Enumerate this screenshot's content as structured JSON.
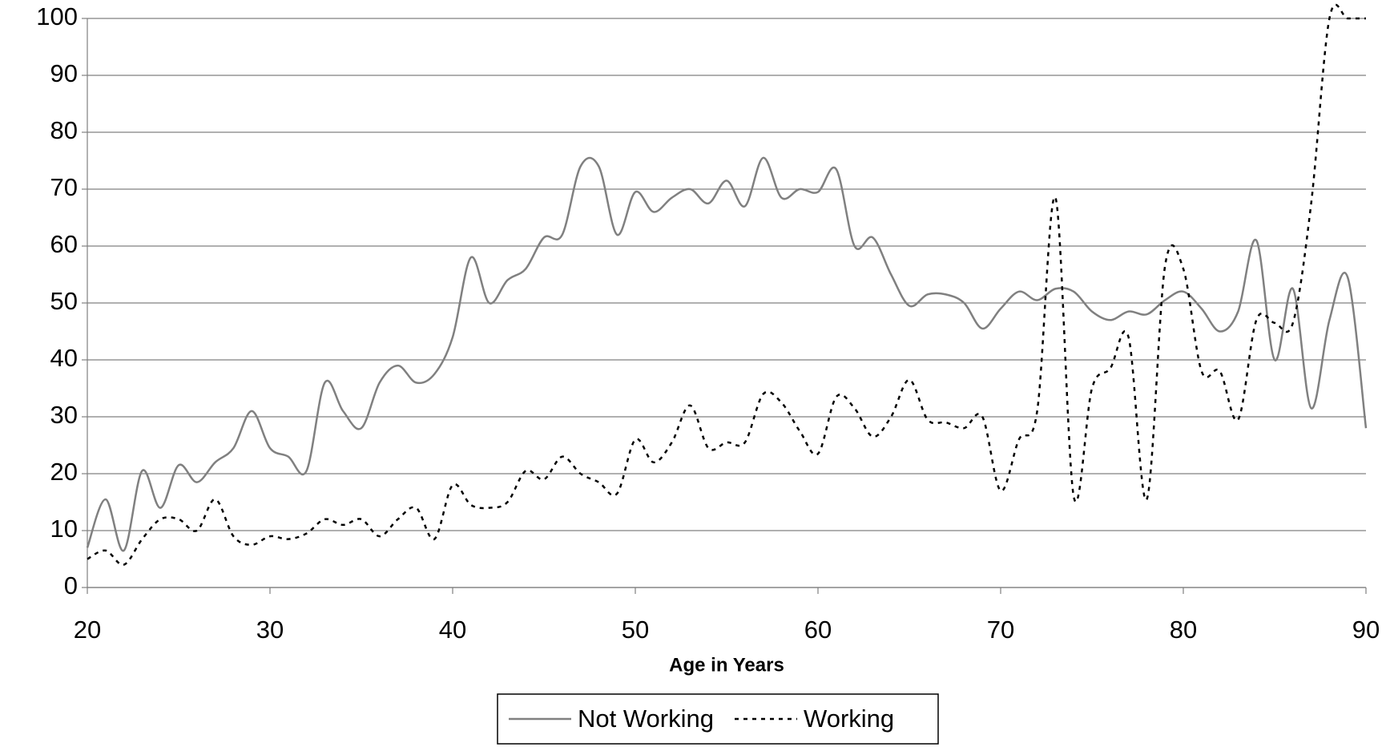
{
  "chart_data": {
    "type": "line",
    "x_label": "Age in Years",
    "x": [
      20,
      21,
      22,
      23,
      24,
      25,
      26,
      27,
      28,
      29,
      30,
      31,
      32,
      33,
      34,
      35,
      36,
      37,
      38,
      39,
      40,
      41,
      42,
      43,
      44,
      45,
      46,
      47,
      48,
      49,
      50,
      51,
      52,
      53,
      54,
      55,
      56,
      57,
      58,
      59,
      60,
      61,
      62,
      63,
      64,
      65,
      66,
      67,
      68,
      69,
      70,
      71,
      72,
      73,
      74,
      75,
      76,
      77,
      78,
      79,
      80,
      81,
      82,
      83,
      84,
      85,
      86,
      87,
      88,
      89,
      90
    ],
    "series": [
      {
        "name": "Not Working",
        "color": "#808080",
        "dash": "solid",
        "values": [
          7,
          15.5,
          6.5,
          20.5,
          14,
          21.5,
          18.5,
          22,
          24.5,
          31,
          24.5,
          23,
          20.5,
          36,
          31,
          28,
          36,
          39,
          36,
          37.5,
          44,
          58,
          50,
          54,
          56,
          61.5,
          62,
          74,
          74,
          62,
          69.5,
          66,
          68.5,
          70,
          67.5,
          71.5,
          67,
          75.5,
          68.5,
          70,
          69.5,
          73.5,
          60,
          61.5,
          55,
          49.5,
          51.5,
          51.5,
          50,
          45.5,
          49,
          52,
          50.5,
          52.5,
          52,
          48.5,
          47,
          48.5,
          48,
          50.5,
          52,
          49,
          45,
          48.5,
          61,
          40,
          52.5,
          31.5,
          47,
          54.5,
          28
        ]
      },
      {
        "name": "Working",
        "color": "#000000",
        "dash": "dotted",
        "values": [
          5,
          6.5,
          4,
          8.5,
          12,
          12,
          10,
          15.5,
          9,
          7.5,
          9,
          8.5,
          9.5,
          12,
          11,
          12,
          9,
          12,
          14,
          8.5,
          18,
          14.5,
          14,
          15,
          20.5,
          19,
          23,
          20,
          18.5,
          16.5,
          26,
          22,
          25.5,
          32,
          24.5,
          25.5,
          25.5,
          34,
          32.5,
          27.5,
          23.5,
          33.5,
          31.5,
          26.5,
          30,
          36.5,
          29.5,
          29,
          28,
          30,
          17,
          26,
          31,
          68.5,
          16,
          35,
          38.5,
          44,
          15.5,
          56.5,
          56,
          38,
          38,
          29.5,
          47,
          46.5,
          46.5,
          67.5,
          100,
          100,
          100
        ]
      }
    ],
    "xlim": [
      20,
      90
    ],
    "xticks": [
      20,
      30,
      40,
      50,
      60,
      70,
      80,
      90
    ],
    "ylim": [
      0,
      100
    ],
    "yticks": [
      0,
      10,
      20,
      30,
      40,
      50,
      60,
      70,
      80,
      90,
      100
    ],
    "grid": true,
    "legend": "bottom"
  }
}
